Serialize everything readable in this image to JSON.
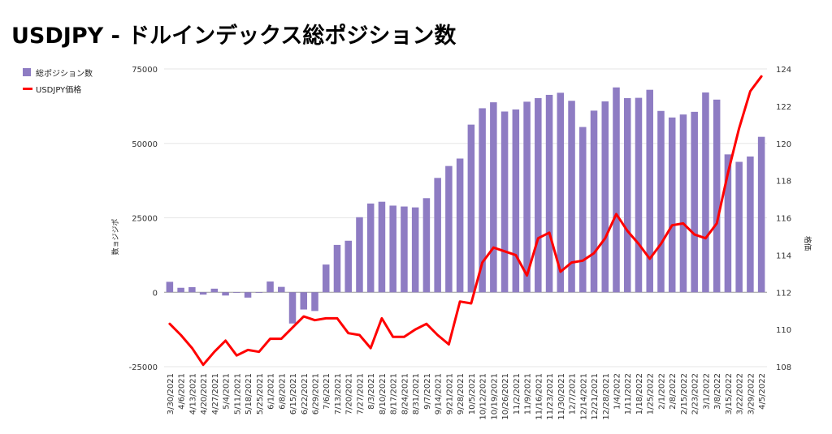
{
  "chart_data": {
    "type": "bar+line",
    "title": "USDJPY - ドルインデックス総ポジション数",
    "legend": [
      {
        "name": "総ポジション数",
        "color": "#8e7cc3",
        "kind": "bar"
      },
      {
        "name": "USDJPY価格",
        "color": "#ff0000",
        "kind": "line"
      }
    ],
    "y_left": {
      "label": "数ョジジポ",
      "min": -25000,
      "max": 75000,
      "ticks": [
        -25000,
        0,
        25000,
        50000,
        75000
      ]
    },
    "y_right": {
      "label": "格価",
      "min": 108,
      "max": 124,
      "ticks": [
        108,
        110,
        112,
        114,
        116,
        118,
        120,
        122,
        124
      ]
    },
    "categories": [
      "3/30/2021",
      "4/6/2021",
      "4/13/2021",
      "4/20/2021",
      "4/27/2021",
      "5/4/2021",
      "5/11/2021",
      "5/18/2021",
      "5/25/2021",
      "6/1/2021",
      "6/8/2021",
      "6/15/2021",
      "6/22/2021",
      "6/29/2021",
      "7/6/2021",
      "7/13/2021",
      "7/20/2021",
      "7/27/2021",
      "8/3/2021",
      "8/10/2021",
      "8/17/2021",
      "8/24/2021",
      "8/31/2021",
      "9/7/2021",
      "9/14/2021",
      "9/21/2021",
      "9/28/2021",
      "10/5/2021",
      "10/12/2021",
      "10/19/2021",
      "10/26/2021",
      "11/2/2021",
      "11/9/2021",
      "11/16/2021",
      "11/23/2021",
      "11/30/2021",
      "12/7/2021",
      "12/14/2021",
      "12/21/2021",
      "12/28/2021",
      "1/4/2022",
      "1/11/2022",
      "1/18/2022",
      "1/25/2022",
      "2/1/2022",
      "2/8/2022",
      "2/15/2022",
      "2/23/2022",
      "3/1/2022",
      "3/8/2022",
      "3/15/2022",
      "3/22/2022",
      "3/29/2022",
      "4/5/2022"
    ],
    "x_tick_labels": [
      "3/30/2021",
      "4/6/2021",
      "4/13/2021",
      "4/20/2021",
      "4/27/2021",
      "5/4/2021",
      "5/11/2021",
      "5/18/2021",
      "5/25/2021",
      "6/1/2021",
      "6/8/2021",
      "6/15/2021",
      "6/22/2021",
      "6/29/2021",
      "7/6/2021",
      "7/13/2021",
      "7/20/2021",
      "7/27/2021",
      "8/3/2021",
      "8/10/2021",
      "8/17/2021",
      "8/24/2021",
      "8/31/2021",
      "9/7/2021",
      "9/14/2021",
      "9/21/2021",
      "9/28/2021",
      "10/5/2021",
      "10/12/2021",
      "10/19/2021",
      "10/26/2021",
      "11/2/2021",
      "11/9/2021",
      "11/16/2021",
      "11/23/2021",
      "11/30/2021",
      "12/7/2021",
      "12/14/2021",
      "12/21/2021",
      "12/28/2021",
      "1/4/2022",
      "1/11/2022",
      "1/18/2022",
      "1/25/2022",
      "2/1/2022",
      "2/8/2022",
      "2/15/2022",
      "2/23/2022",
      "3/1/2022",
      "3/8/2022",
      "3/15/2022",
      "3/22/2022",
      "3/29/2022",
      "4/5/2022"
    ],
    "bars": [
      3500,
      1500,
      1700,
      -800,
      1200,
      -1100,
      -200,
      -1800,
      -200,
      3600,
      1800,
      -10500,
      -5800,
      -6300,
      9300,
      15900,
      17300,
      25200,
      29800,
      30400,
      29100,
      28800,
      28500,
      31600,
      38400,
      42400,
      44900,
      56300,
      61800,
      63800,
      60700,
      61400,
      64000,
      65200,
      66300,
      67000,
      64300,
      55500,
      61000,
      64100,
      68800,
      65200,
      65300,
      68000,
      60900,
      58700,
      59700,
      60600,
      67100,
      64700,
      46300,
      43800,
      45600,
      52200
    ],
    "line": [
      110.3,
      109.7,
      109.0,
      108.1,
      108.8,
      109.4,
      108.6,
      108.9,
      108.8,
      109.5,
      109.5,
      110.1,
      110.7,
      110.5,
      110.6,
      110.6,
      109.8,
      109.7,
      109.0,
      110.6,
      109.6,
      109.6,
      110.0,
      110.3,
      109.7,
      109.2,
      111.5,
      111.4,
      113.6,
      114.4,
      114.2,
      114.0,
      112.9,
      114.9,
      115.2,
      113.1,
      113.6,
      113.7,
      114.1,
      114.9,
      116.2,
      115.3,
      114.6,
      113.8,
      114.6,
      115.6,
      115.7,
      115.1,
      114.9,
      115.7,
      118.4,
      120.8,
      122.8,
      123.6
    ]
  }
}
